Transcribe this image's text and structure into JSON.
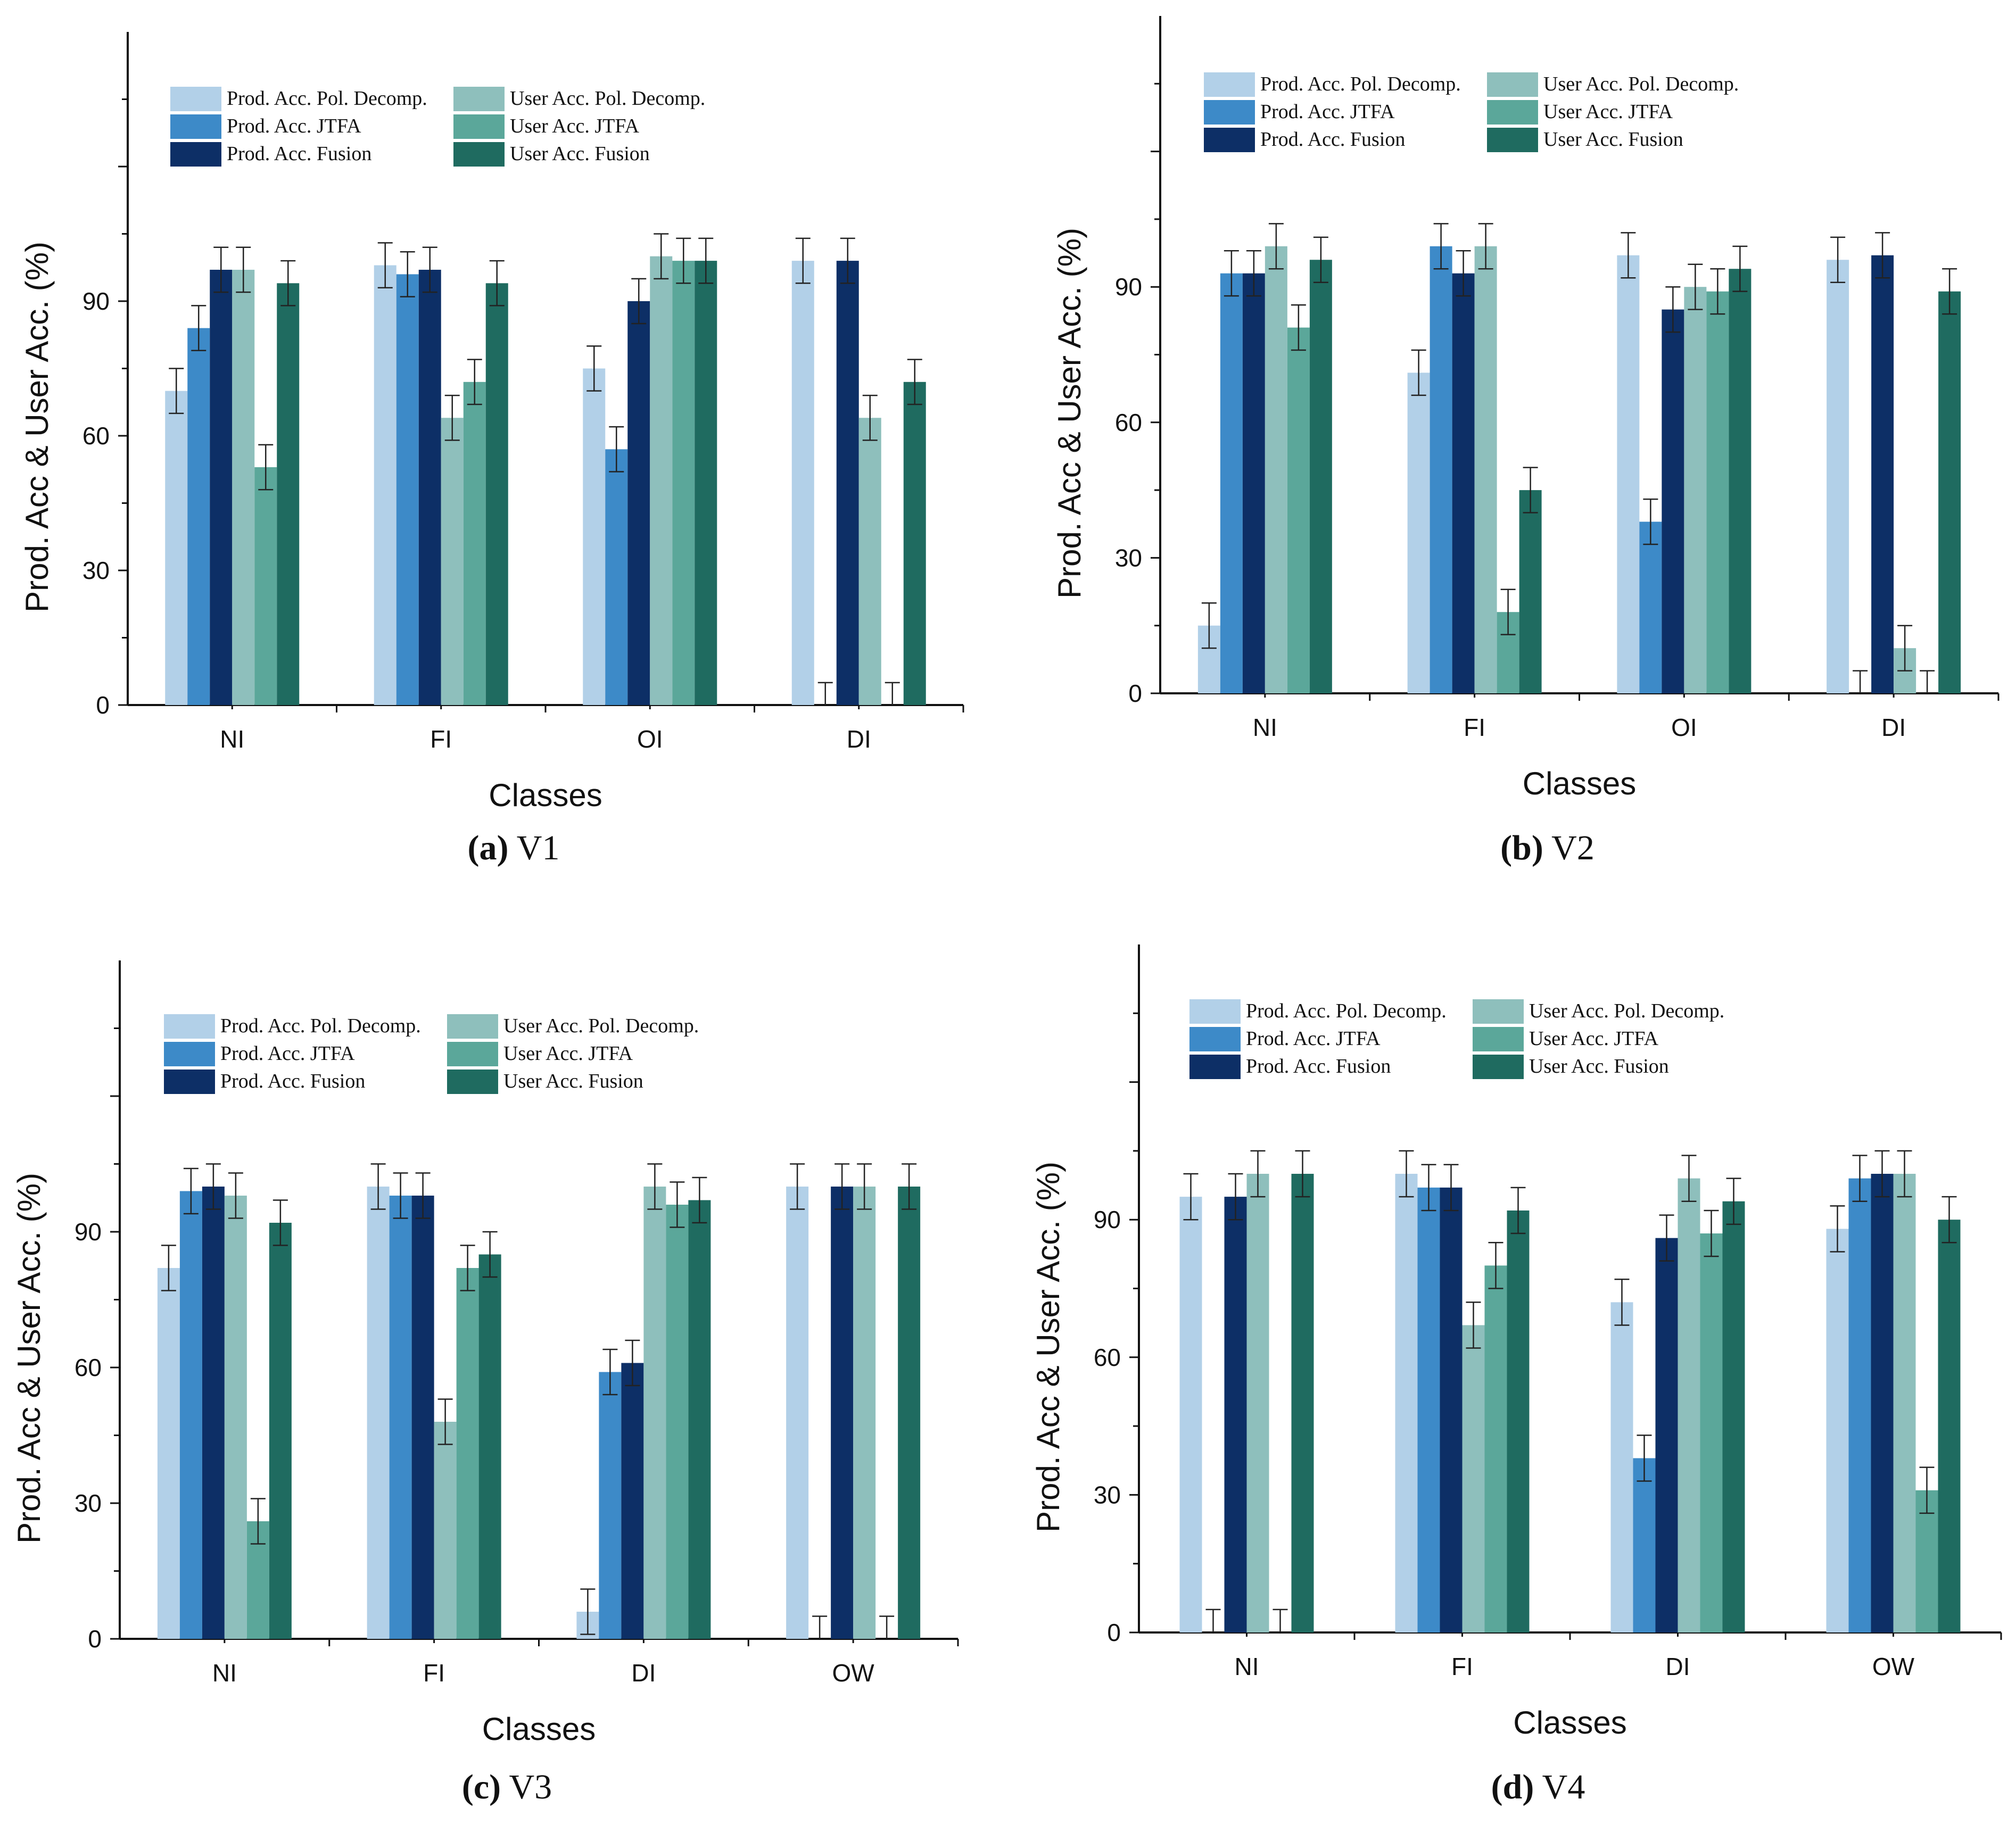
{
  "series_styles": [
    {
      "name": "Prod. Acc. Pol. Decomp.",
      "color": "#b2d0e8"
    },
    {
      "name": "Prod. Acc. JTFA",
      "color": "#3d8ac8"
    },
    {
      "name": "Prod. Acc. Fusion",
      "color": "#0d2f66"
    },
    {
      "name": "User Acc. Pol. Decomp.",
      "color": "#8ebfbc"
    },
    {
      "name": "User Acc. JTFA",
      "color": "#5ba79a"
    },
    {
      "name": "User Acc. Fusion",
      "color": "#1f6b60"
    }
  ],
  "chart_data": [
    {
      "type": "bar",
      "panel_letter": "(a)",
      "panel_name": "V1",
      "xlabel": "Classes",
      "ylabel": "Prod. Acc & User Acc. (%)",
      "ylim": [
        0,
        150
      ],
      "yticks": [
        "0",
        "30",
        "60",
        "90"
      ],
      "categories": [
        "NI",
        "FI",
        "OI",
        "DI"
      ],
      "series": [
        {
          "name": "Prod. Acc. Pol. Decomp.",
          "values": [
            70,
            98,
            75,
            99
          ]
        },
        {
          "name": "Prod. Acc. JTFA",
          "values": [
            84,
            96,
            57,
            0
          ]
        },
        {
          "name": "Prod. Acc. Fusion",
          "values": [
            97,
            97,
            90,
            99
          ]
        },
        {
          "name": "User Acc. Pol. Decomp.",
          "values": [
            97,
            64,
            100,
            64
          ]
        },
        {
          "name": "User Acc. JTFA",
          "values": [
            53,
            72,
            99,
            0
          ]
        },
        {
          "name": "User Acc. Fusion",
          "values": [
            94,
            94,
            99,
            72
          ]
        }
      ]
    },
    {
      "type": "bar",
      "panel_letter": "(b)",
      "panel_name": "V2",
      "xlabel": "Classes",
      "ylabel": "Prod. Acc & User Acc. (%)",
      "ylim": [
        0,
        150
      ],
      "yticks": [
        "0",
        "30",
        "60",
        "90"
      ],
      "categories": [
        "NI",
        "FI",
        "OI",
        "DI"
      ],
      "series": [
        {
          "name": "Prod. Acc. Pol. Decomp.",
          "values": [
            15,
            71,
            97,
            96
          ]
        },
        {
          "name": "Prod. Acc. JTFA",
          "values": [
            93,
            99,
            38,
            0
          ]
        },
        {
          "name": "Prod. Acc. Fusion",
          "values": [
            93,
            93,
            85,
            97
          ]
        },
        {
          "name": "User Acc. Pol. Decomp.",
          "values": [
            99,
            99,
            90,
            10
          ]
        },
        {
          "name": "User Acc. JTFA",
          "values": [
            81,
            18,
            89,
            0
          ]
        },
        {
          "name": "User Acc. Fusion",
          "values": [
            96,
            45,
            94,
            89
          ]
        }
      ]
    },
    {
      "type": "bar",
      "panel_letter": "(c)",
      "panel_name": "V3",
      "xlabel": "Classes",
      "ylabel": "Prod. Acc & User Acc. (%)",
      "ylim": [
        0,
        150
      ],
      "yticks": [
        "0",
        "30",
        "60",
        "90"
      ],
      "categories": [
        "NI",
        "FI",
        "DI",
        "OW"
      ],
      "series": [
        {
          "name": "Prod. Acc. Pol. Decomp.",
          "values": [
            82,
            100,
            6,
            100
          ]
        },
        {
          "name": "Prod. Acc. JTFA",
          "values": [
            99,
            98,
            59,
            0
          ]
        },
        {
          "name": "Prod. Acc. Fusion",
          "values": [
            100,
            98,
            61,
            100
          ]
        },
        {
          "name": "User Acc. Pol. Decomp.",
          "values": [
            98,
            48,
            100,
            100
          ]
        },
        {
          "name": "User Acc. JTFA",
          "values": [
            26,
            82,
            96,
            0
          ]
        },
        {
          "name": "User Acc. Fusion",
          "values": [
            92,
            85,
            97,
            100
          ]
        }
      ]
    },
    {
      "type": "bar",
      "panel_letter": "(d)",
      "panel_name": "V4",
      "xlabel": "Classes",
      "ylabel": "Prod. Acc & User Acc. (%)",
      "ylim": [
        0,
        150
      ],
      "yticks": [
        "0",
        "30",
        "60",
        "90"
      ],
      "categories": [
        "NI",
        "FI",
        "DI",
        "OW"
      ],
      "series": [
        {
          "name": "Prod. Acc. Pol. Decomp.",
          "values": [
            95,
            100,
            72,
            88
          ]
        },
        {
          "name": "Prod. Acc. JTFA",
          "values": [
            0,
            97,
            38,
            99
          ]
        },
        {
          "name": "Prod. Acc. Fusion",
          "values": [
            95,
            97,
            86,
            100
          ]
        },
        {
          "name": "User Acc. Pol. Decomp.",
          "values": [
            100,
            67,
            99,
            100
          ]
        },
        {
          "name": "User Acc. JTFA",
          "values": [
            0,
            80,
            87,
            31
          ]
        },
        {
          "name": "User Acc. Fusion",
          "values": [
            100,
            92,
            94,
            90
          ]
        }
      ]
    }
  ]
}
